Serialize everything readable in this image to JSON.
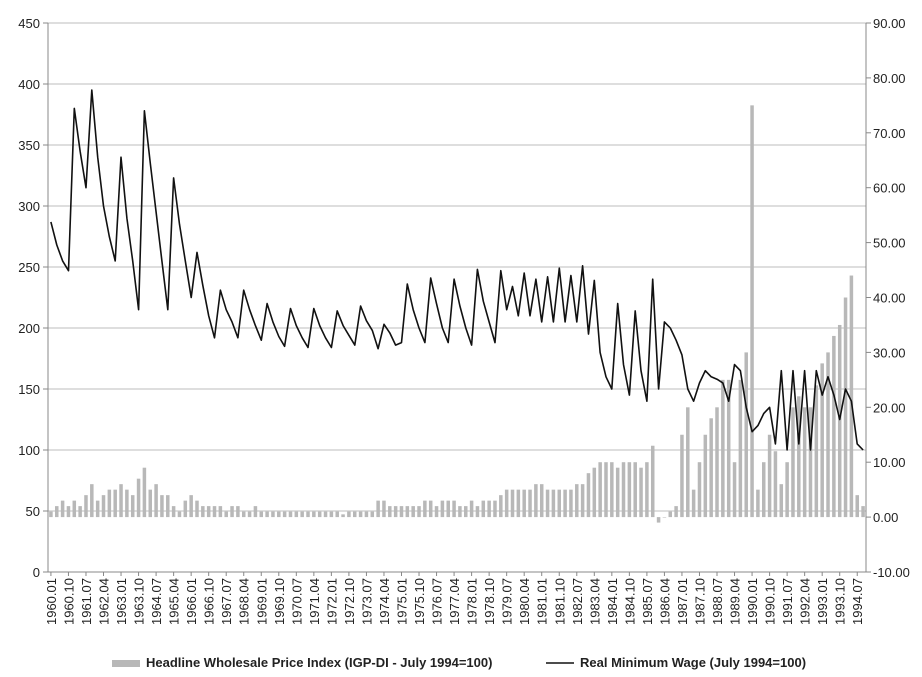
{
  "chart_data": {
    "type": "bar-line",
    "categories": [
      "1960.01",
      null,
      null,
      "1960.10",
      null,
      null,
      "1961.07",
      null,
      null,
      "1962.04",
      null,
      null,
      "1963.01",
      null,
      null,
      "1963.10",
      null,
      null,
      "1964.07",
      null,
      null,
      "1965.04",
      null,
      null,
      "1966.01",
      null,
      null,
      "1966.10",
      null,
      null,
      "1967.07",
      null,
      null,
      "1968.04",
      null,
      null,
      "1969.01",
      null,
      null,
      "1969.10",
      null,
      null,
      "1970.07",
      null,
      null,
      "1971.04",
      null,
      null,
      "1972.01",
      null,
      null,
      "1972.10",
      null,
      null,
      "1973.07",
      null,
      null,
      "1974.04",
      null,
      null,
      "1975.01",
      null,
      null,
      "1975.10",
      null,
      null,
      "1976.07",
      null,
      null,
      "1977.04",
      null,
      null,
      "1978.01",
      null,
      null,
      "1978.10",
      null,
      null,
      "1979.07",
      null,
      null,
      "1980.04",
      null,
      null,
      "1981.01",
      null,
      null,
      "1981.10",
      null,
      null,
      "1982.07",
      null,
      null,
      "1983.04",
      null,
      null,
      "1984.01",
      null,
      null,
      "1984.10",
      null,
      null,
      "1985.07",
      null,
      null,
      "1986.04",
      null,
      null,
      "1987.01",
      null,
      null,
      "1987.10",
      null,
      null,
      "1988.07",
      null,
      null,
      "1989.04",
      null,
      null,
      "1990.01",
      null,
      null,
      "1990.10",
      null,
      null,
      "1991.07",
      null,
      null,
      "1992.04",
      null,
      null,
      "1993.01",
      null,
      null,
      "1993.10",
      null,
      null,
      "1994.07",
      null
    ],
    "series": [
      {
        "name": "Headline Wholesale Price Index (IGP-DI - July 1994=100)",
        "color": "#b8b8b8",
        "axis": "y2",
        "kind": "bar",
        "values": [
          1,
          2,
          3,
          2,
          3,
          2,
          4,
          6,
          3,
          4,
          5,
          5,
          6,
          5,
          4,
          7,
          9,
          5,
          6,
          4,
          4,
          2,
          1,
          3,
          4,
          3,
          2,
          2,
          2,
          2,
          1,
          2,
          2,
          1,
          1,
          2,
          1,
          1,
          1,
          1,
          1,
          1,
          1,
          1,
          1,
          1,
          1,
          1,
          1,
          1,
          0.5,
          1,
          1,
          1,
          1,
          1,
          3,
          3,
          2,
          2,
          2,
          2,
          2,
          2,
          3,
          3,
          2,
          3,
          3,
          3,
          2,
          2,
          3,
          2,
          3,
          3,
          3,
          4,
          5,
          5,
          5,
          5,
          5,
          6,
          6,
          5,
          5,
          5,
          5,
          5,
          6,
          6,
          8,
          9,
          10,
          10,
          10,
          9,
          10,
          10,
          10,
          9,
          10,
          13,
          -1,
          0,
          1,
          2,
          15,
          20,
          5,
          10,
          15,
          18,
          20,
          25,
          25,
          10,
          25,
          30,
          75,
          5,
          10,
          15,
          12,
          6,
          10,
          20,
          22,
          20,
          20,
          24,
          28,
          30,
          33,
          35,
          40,
          44,
          4,
          2
        ]
      },
      {
        "name": "Real Minimum Wage (July 1994=100)",
        "color": "#111111",
        "axis": "y",
        "kind": "line",
        "values": [
          287,
          268,
          255,
          247,
          380,
          345,
          315,
          395,
          340,
          300,
          275,
          255,
          340,
          290,
          255,
          215,
          378,
          335,
          295,
          255,
          215,
          323,
          285,
          255,
          225,
          262,
          235,
          210,
          192,
          231,
          215,
          205,
          192,
          231,
          215,
          202,
          190,
          220,
          205,
          193,
          185,
          216,
          202,
          192,
          184,
          216,
          202,
          192,
          184,
          214,
          202,
          194,
          186,
          218,
          206,
          198,
          183,
          203,
          196,
          186,
          188,
          236,
          215,
          200,
          188,
          241,
          220,
          200,
          188,
          240,
          218,
          200,
          186,
          248,
          222,
          205,
          188,
          247,
          215,
          234,
          210,
          245,
          210,
          240,
          205,
          242,
          205,
          249,
          205,
          243,
          205,
          251,
          195,
          239,
          180,
          160,
          150,
          220,
          170,
          145,
          214,
          165,
          140,
          240,
          150,
          205,
          200,
          190,
          178,
          150,
          140,
          155,
          165,
          160,
          158,
          155,
          140,
          170,
          165,
          135,
          115,
          120,
          130,
          135,
          105,
          165,
          100,
          165,
          105,
          165,
          100,
          165,
          145,
          160,
          145,
          125,
          150,
          140,
          105,
          100
        ]
      }
    ],
    "ylim": [
      0,
      450
    ],
    "yticks": [
      0,
      50,
      100,
      150,
      200,
      250,
      300,
      350,
      400,
      450
    ],
    "y2lim": [
      -10,
      90
    ],
    "y2ticks": [
      {
        "value": -10,
        "label": "-10.00"
      },
      {
        "value": 0,
        "label": "0.00"
      },
      {
        "value": 10,
        "label": "10.00"
      },
      {
        "value": 20,
        "label": "20.00"
      },
      {
        "value": 30,
        "label": "30.00"
      },
      {
        "value": 40,
        "label": "40.00"
      },
      {
        "value": 50,
        "label": "50.00"
      },
      {
        "value": 60,
        "label": "60.00"
      },
      {
        "value": 70,
        "label": "70.00"
      },
      {
        "value": 80,
        "label": "80.00"
      },
      {
        "value": 90,
        "label": "90.00"
      }
    ],
    "grid": true,
    "legend": "bottom"
  }
}
